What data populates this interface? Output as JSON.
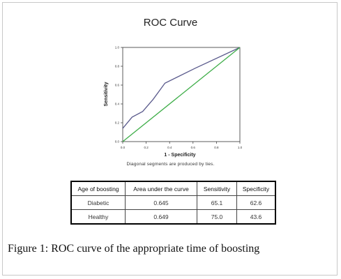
{
  "chart_data": {
    "type": "line",
    "title": "ROC Curve",
    "xlabel": "1 - Specificity",
    "ylabel": "Sensitivity",
    "xlim": [
      0,
      1
    ],
    "ylim": [
      0,
      1
    ],
    "x_ticks": [
      "0.0",
      "0.2",
      "0.4",
      "0.6",
      "0.8",
      "1.0"
    ],
    "y_ticks": [
      "0.0",
      "0.2",
      "0.4",
      "0.6",
      "0.8",
      "1.0"
    ],
    "grid": false,
    "series": [
      {
        "color": "#5a5a8c",
        "points": [
          [
            0,
            0.14
          ],
          [
            0.08,
            0.26
          ],
          [
            0.17,
            0.32
          ],
          [
            0.26,
            0.45
          ],
          [
            0.36,
            0.62
          ],
          [
            0.62,
            0.78
          ],
          [
            1.0,
            1.0
          ]
        ]
      },
      {
        "color": "#3fae49",
        "points": [
          [
            0,
            0
          ],
          [
            1,
            1
          ]
        ]
      }
    ],
    "footnote": "Diagonal segments  are produced by ties."
  },
  "table": {
    "headers": [
      "Age of boosting",
      "Area under the curve",
      "Sensitivity",
      "Specificity"
    ],
    "rows": [
      [
        "Diabetic",
        "0.645",
        "65.1",
        "62.6"
      ],
      [
        "Healthy",
        "0.649",
        "75.0",
        "43.6"
      ]
    ]
  },
  "caption": "Figure 1: ROC curve of the appropriate time of boosting"
}
